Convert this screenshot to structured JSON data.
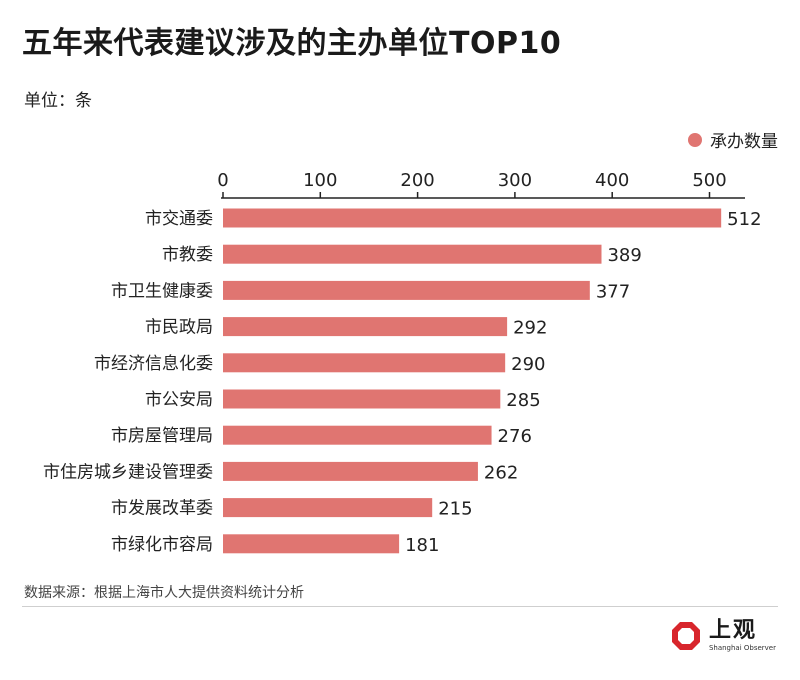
{
  "header": {
    "title": "五年来代表建议涉及的主办单位TOP10",
    "unit": "单位：条"
  },
  "legend": {
    "label": "承办数量"
  },
  "colors": {
    "bar": "#e07571",
    "axis": "#222222"
  },
  "chart_data": {
    "type": "bar",
    "orientation": "horizontal",
    "title": "五年来代表建议涉及的主办单位TOP10",
    "xlabel": "",
    "ylabel": "",
    "xlim": [
      0,
      540
    ],
    "ticks": [
      0,
      100,
      200,
      300,
      400,
      500
    ],
    "categories": [
      "市交通委",
      "市教委",
      "市卫生健康委",
      "市民政局",
      "市经济信息化委",
      "市公安局",
      "市房屋管理局",
      "市住房城乡建设管理委",
      "市发展改革委",
      "市绿化市容局"
    ],
    "series": [
      {
        "name": "承办数量",
        "values": [
          512,
          389,
          377,
          292,
          290,
          285,
          276,
          262,
          215,
          181
        ]
      }
    ],
    "legend_position": "top-right",
    "grid": false
  },
  "footer": {
    "source": "数据来源：根据上海市人大提供资料统计分析",
    "logo_cn": "上观",
    "logo_en": "Shanghai Observer",
    "logo_icon": "octagon-logo-icon"
  }
}
